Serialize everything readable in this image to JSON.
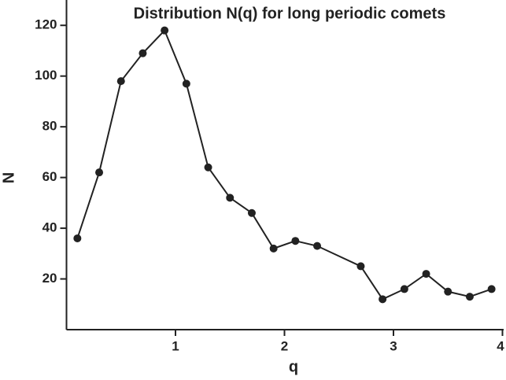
{
  "chart_data": {
    "type": "line",
    "title": "Distribution N(q) for long periodic comets",
    "x_label": "q",
    "y_label": "N",
    "x": [
      0.1,
      0.3,
      0.5,
      0.7,
      0.9,
      1.1,
      1.3,
      1.5,
      1.7,
      1.9,
      2.1,
      2.3,
      2.7,
      2.9,
      3.1,
      3.3,
      3.5,
      3.7,
      3.9
    ],
    "series": [
      {
        "name": "N(q)",
        "color": "#222222",
        "values": [
          36,
          62,
          98,
          109,
          118,
          97,
          64,
          52,
          46,
          32,
          35,
          33,
          25,
          12,
          16,
          22,
          15,
          13,
          16
        ]
      }
    ],
    "xlim": [
      0,
      4
    ],
    "xticks": [
      1,
      2,
      3,
      4
    ],
    "ylim": [
      0,
      130
    ],
    "yticks": [
      20,
      40,
      60,
      80,
      100,
      120
    ]
  }
}
